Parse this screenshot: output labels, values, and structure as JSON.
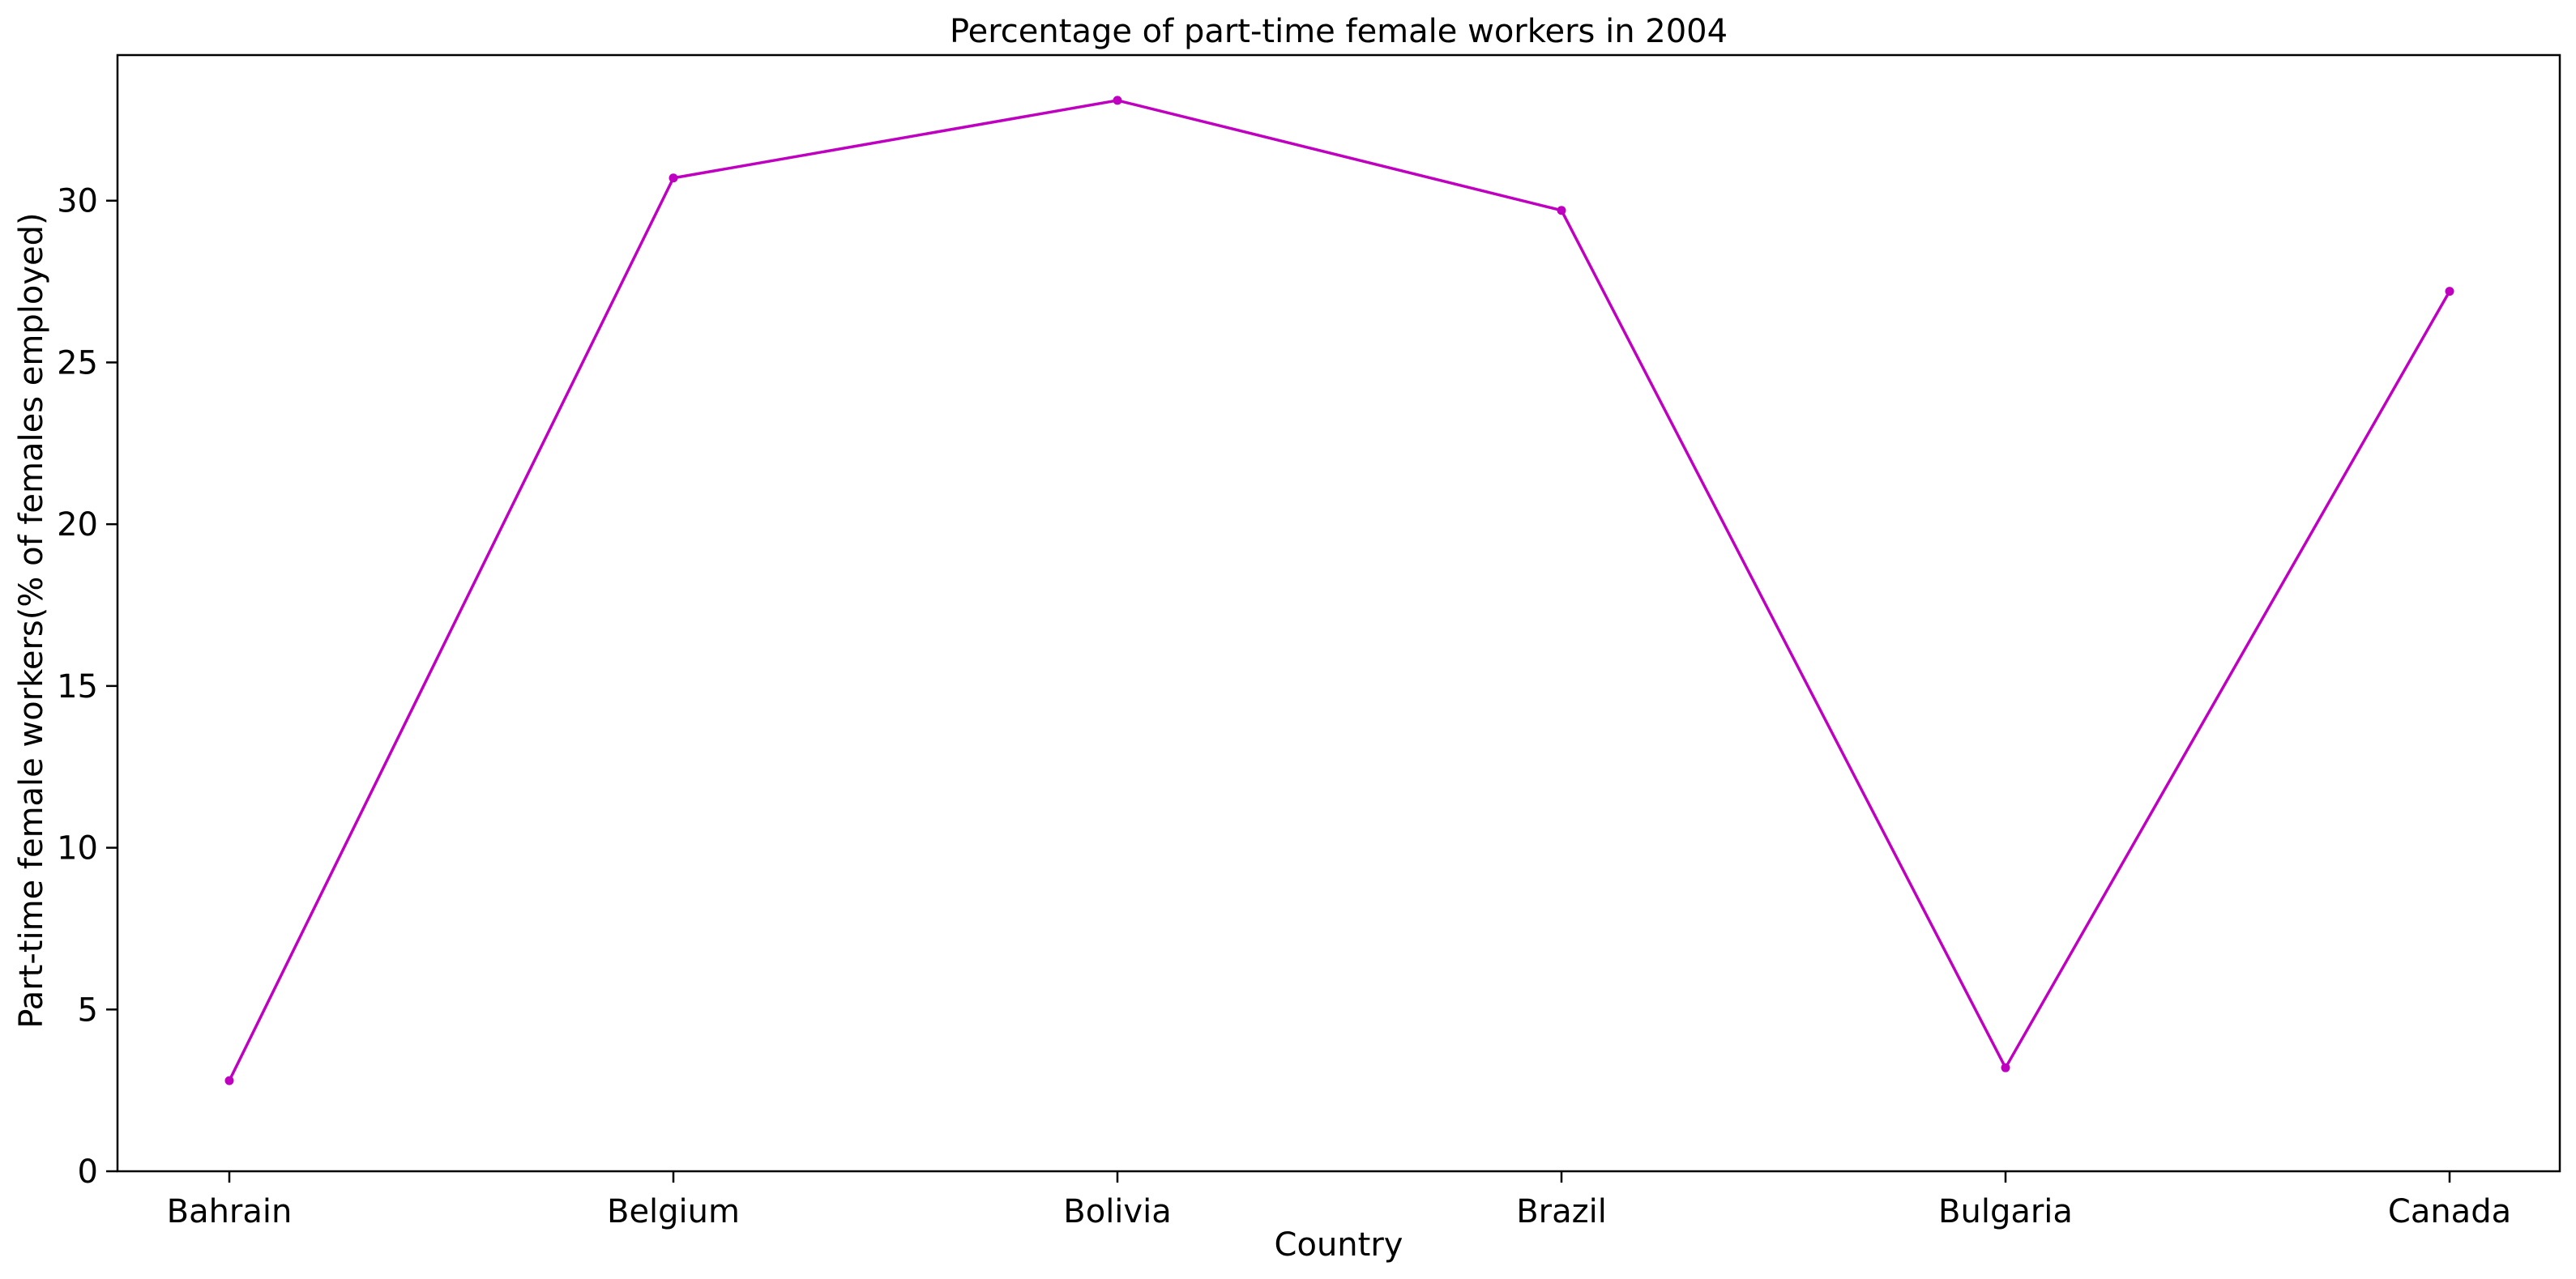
{
  "chart_data": {
    "type": "line",
    "title": "Percentage of part-time female workers in 2004",
    "xlabel": "Country",
    "ylabel": "Part-time female workers(% of females employed)",
    "categories": [
      "Bahrain",
      "Belgium",
      "Bolivia",
      "Brazil",
      "Bulgaria",
      "Canada"
    ],
    "series": [
      {
        "values": [
          2.8,
          30.7,
          33.1,
          29.7,
          3.2,
          27.2
        ],
        "color": "#c000c0",
        "marker": "circle"
      }
    ],
    "ylim": [
      0,
      34.5
    ],
    "yticks": [
      0,
      5,
      10,
      15,
      20,
      25,
      30
    ],
    "grid": false,
    "legend": "none"
  }
}
